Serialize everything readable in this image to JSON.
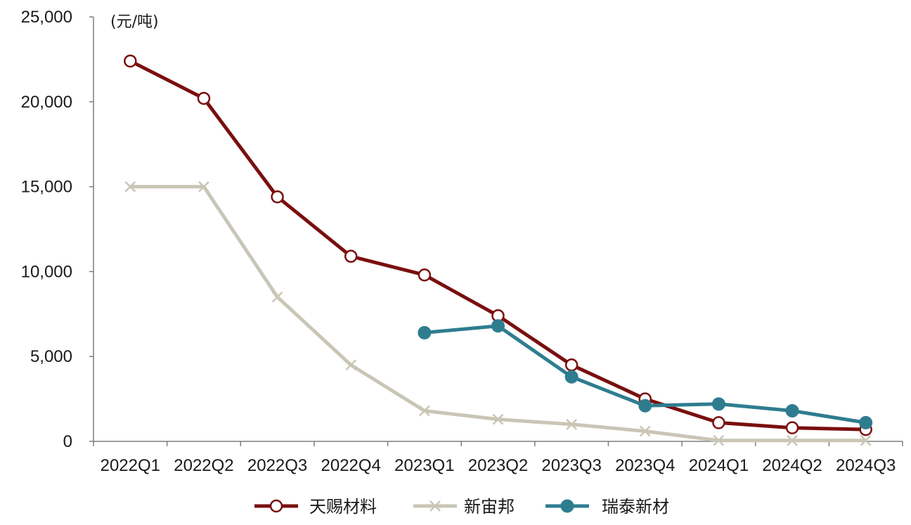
{
  "chart_data": {
    "type": "line",
    "unit_label": "(元/吨)",
    "categories": [
      "2022Q1",
      "2022Q2",
      "2022Q3",
      "2022Q4",
      "2023Q1",
      "2023Q2",
      "2023Q3",
      "2023Q4",
      "2024Q1",
      "2024Q2",
      "2024Q3"
    ],
    "ylim": [
      0,
      25000
    ],
    "yticks": [
      0,
      5000,
      10000,
      15000,
      20000,
      25000
    ],
    "ytick_labels": [
      "0",
      "5,000",
      "10,000",
      "15,000",
      "20,000",
      "25,000"
    ],
    "grid": false,
    "legend_position": "bottom",
    "series": [
      {
        "name": "天赐材料",
        "color": "#7a0f0f",
        "marker": "circle-open",
        "values": [
          22400,
          20200,
          14400,
          10900,
          9800,
          7400,
          4500,
          2500,
          1100,
          800,
          700
        ]
      },
      {
        "name": "新宙邦",
        "color": "#c9c6b6",
        "marker": "x",
        "values": [
          15000,
          15000,
          8500,
          4500,
          1800,
          1300,
          1000,
          600,
          50,
          50,
          50
        ]
      },
      {
        "name": "瑞泰新材",
        "color": "#2e7d8f",
        "marker": "circle-filled",
        "values": [
          null,
          null,
          null,
          null,
          6400,
          6800,
          3800,
          2100,
          2200,
          1800,
          1100
        ]
      }
    ]
  }
}
